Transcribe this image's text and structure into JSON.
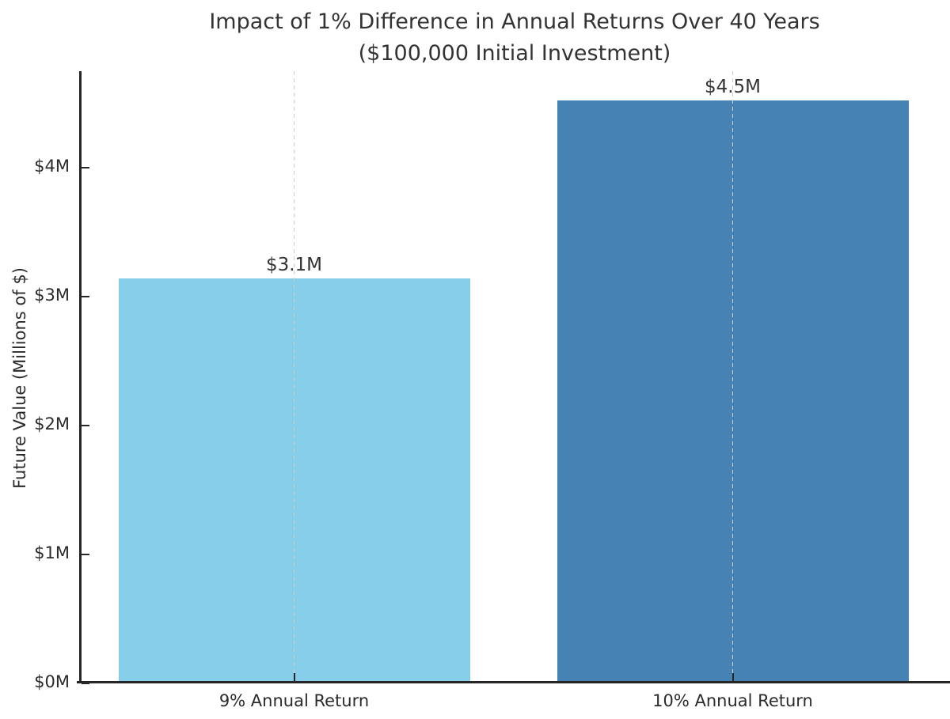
{
  "figure": {
    "background": "#ffffff"
  },
  "chart_data": {
    "type": "bar",
    "title_line1": "Impact of 1% Difference in Annual Returns Over 40 Years",
    "title_line2": "($100,000 Initial Investment)",
    "ylabel": "Future Value (Millions of $)",
    "xlabel": "",
    "categories": [
      "9% Annual Return",
      "10% Annual Return"
    ],
    "values": [
      3.14,
      4.52
    ],
    "bar_labels": [
      "$3.1M",
      "$4.5M"
    ],
    "bar_colors": [
      "#87CEEB",
      "#4682B4"
    ],
    "yticks": [
      {
        "value": 0,
        "label": "$0M"
      },
      {
        "value": 1,
        "label": "$1M"
      },
      {
        "value": 2,
        "label": "$2M"
      },
      {
        "value": 3,
        "label": "$3M"
      },
      {
        "value": 4,
        "label": "$4M"
      }
    ],
    "ylim": [
      0,
      4.75
    ],
    "grid": {
      "axis": "x",
      "line_style": "dashed",
      "color": "#cccccc",
      "position": "at_bar_centers"
    },
    "legend": "none",
    "colors": {
      "spine": "#262626",
      "title_text": "#333333",
      "tick_text": "#2b2b2b"
    }
  }
}
